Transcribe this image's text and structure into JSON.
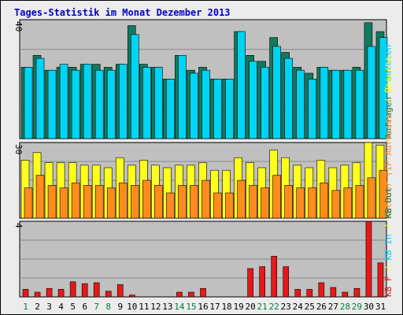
{
  "colors": {
    "background": "#ececec",
    "frame_border": "#000000",
    "plot_bg": "#c0c0c0",
    "grid": "#8a8a8a",
    "bar_border": "#000000",
    "weekend": "#008040",
    "weekday": "#000000",
    "anfragen": "#0f7a5e",
    "dateien": "#00d4f4",
    "rechner": "#ffff1c",
    "besuche": "#ff8c1c",
    "kbf": "#e81818"
  },
  "chart_data": {
    "type": "bar",
    "title": "Tages-Statistik im Monat Dezember 2013",
    "categories": [
      "1",
      "2",
      "3",
      "4",
      "5",
      "6",
      "7",
      "8",
      "9",
      "10",
      "11",
      "12",
      "13",
      "14",
      "15",
      "16",
      "17",
      "18",
      "19",
      "20",
      "21",
      "22",
      "23",
      "24",
      "25",
      "26",
      "27",
      "28",
      "29",
      "30",
      "31"
    ],
    "weekend_days": [
      "1",
      "7",
      "8",
      "14",
      "15",
      "21",
      "22",
      "28",
      "29"
    ],
    "panels": [
      {
        "name": "anfragen-dateien",
        "ylim": [
          0,
          40
        ],
        "ymax_label": "40",
        "legend": [
          {
            "text": "Anfragen",
            "color_key": "anfragen"
          },
          {
            "text": "/",
            "color_key": "rechner"
          },
          {
            "text": "Dateien",
            "color_key": "dateien"
          }
        ],
        "series": [
          {
            "name": "Anfragen",
            "color_key": "anfragen",
            "values": [
              24,
              28,
              23,
              24,
              24,
              25,
              25,
              24,
              25,
              38,
              25,
              24,
              20,
              28,
              23,
              24,
              20,
              20,
              36,
              28,
              26,
              34,
              29,
              24,
              22,
              24,
              23,
              23,
              24,
              39,
              36
            ]
          },
          {
            "name": "Dateien",
            "color_key": "dateien",
            "values": [
              24,
              27,
              23,
              25,
              23,
              25,
              23,
              23,
              25,
              35,
              24,
              24,
              20,
              28,
              22,
              23,
              20,
              20,
              36,
              26,
              24,
              31,
              27,
              23,
              20,
              24,
              23,
              23,
              23,
              31,
              34
            ]
          }
        ]
      },
      {
        "name": "rechner-besuche",
        "ylim": [
          0,
          30
        ],
        "ymax_label": "30",
        "legend": [
          {
            "text": "Rechner (IP-Adressen)",
            "color_key": "besuche"
          },
          {
            "text": "/",
            "color_key": "rechner"
          },
          {
            "text": "Besuche",
            "color_key": "rechner"
          }
        ],
        "series": [
          {
            "name": "Rechner (IP-Adressen)",
            "color_key": "rechner",
            "values": [
              23,
              26,
              22,
              22,
              22,
              21,
              21,
              20,
              24,
              21,
              23,
              21,
              20,
              21,
              21,
              22,
              19,
              19,
              24,
              22,
              20,
              27,
              24,
              21,
              20,
              23,
              20,
              21,
              22,
              30,
              29
            ]
          },
          {
            "name": "Besuche",
            "color_key": "besuche",
            "values": [
              12,
              17,
              13,
              12,
              14,
              13,
              13,
              12,
              14,
              13,
              15,
              13,
              10,
              13,
              13,
              15,
              10,
              10,
              15,
              13,
              12,
              17,
              13,
              12,
              12,
              14,
              11,
              12,
              13,
              16,
              19
            ]
          }
        ]
      },
      {
        "name": "kb",
        "ylim": [
          0,
          4
        ],
        "ymax_label": "4",
        "legend": [
          {
            "text": "KB F",
            "color_key": "kbf"
          },
          {
            "text": "/",
            "color_key": "rechner"
          },
          {
            "text": "KB In",
            "color_key": "dateien"
          },
          {
            "text": "/",
            "color_key": "rechner"
          },
          {
            "text": "KB Out",
            "color_key": "anfragen"
          }
        ],
        "series": [
          {
            "name": "KB F",
            "color_key": "kbf",
            "values": [
              0.4,
              0.25,
              0.45,
              0.4,
              0.8,
              0.7,
              0.75,
              0.3,
              0.65,
              0.1,
              0,
              0,
              0,
              0.25,
              0.25,
              0.45,
              0,
              0,
              0,
              1.5,
              1.6,
              2.15,
              1.6,
              0.4,
              0.4,
              0.75,
              0.5,
              0.25,
              0.45,
              4.0,
              1.8
            ]
          }
        ]
      }
    ]
  }
}
